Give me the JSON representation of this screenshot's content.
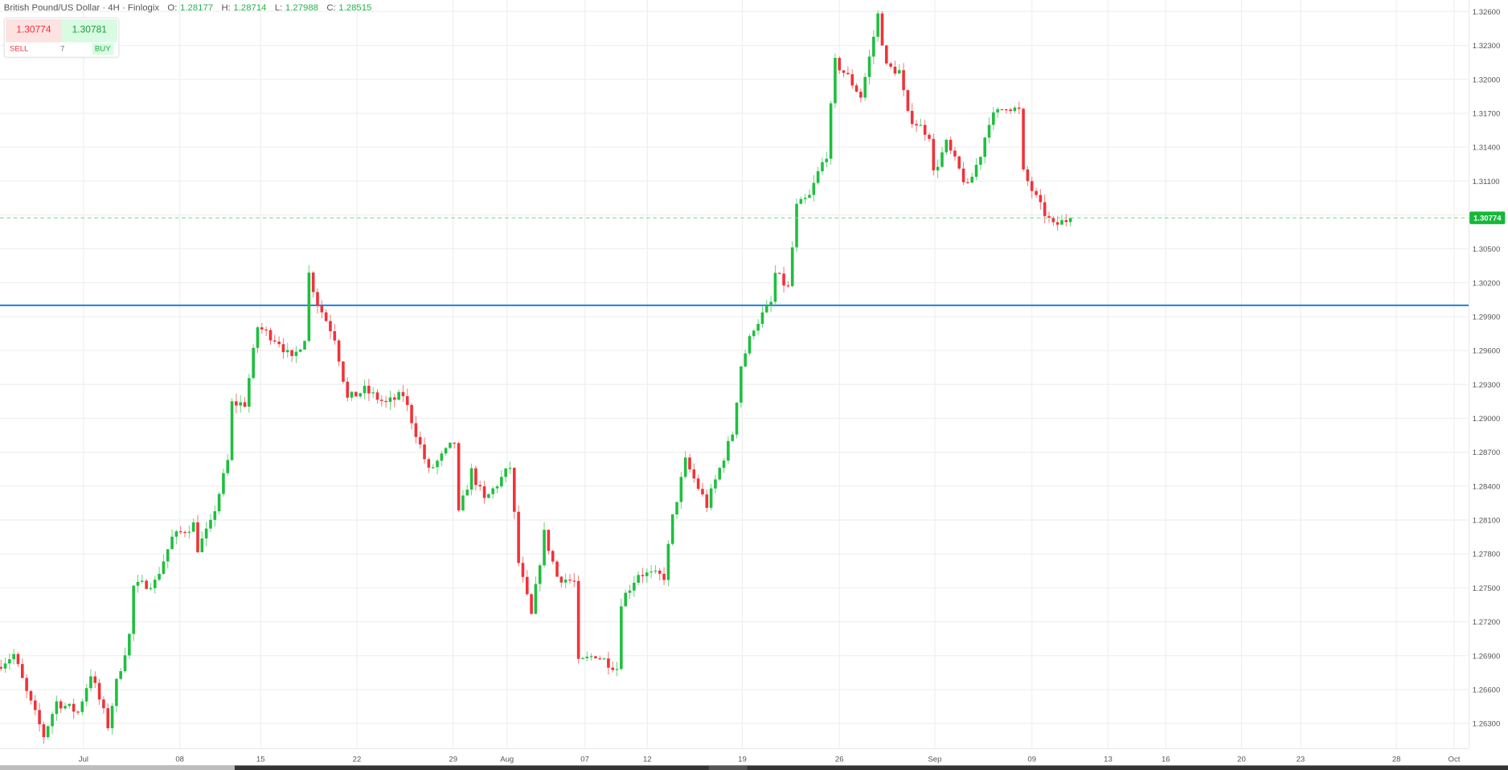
{
  "header": {
    "title": "British Pound/US Dollar · 4H · Finlogix",
    "ohlc": [
      {
        "label": "O:",
        "value": "1.28177"
      },
      {
        "label": "H:",
        "value": "1.28714"
      },
      {
        "label": "L:",
        "value": "1.27988"
      },
      {
        "label": "C:",
        "value": "1.28515"
      }
    ]
  },
  "trade": {
    "sell_price": "1.30774",
    "buy_price": "1.30781",
    "sell_label": "SELL",
    "buy_label": "BUY",
    "quantity": "7"
  },
  "colors": {
    "up": "#1fbf3f",
    "down": "#ef3339",
    "hline": "#1e7fe0",
    "last": "#15b83a"
  },
  "chart_data": {
    "type": "candlestick",
    "symbol": "GBP/USD",
    "timeframe": "4H",
    "ylim": [
      1.2615,
      1.3268
    ],
    "yticks": [
      "1.32600",
      "1.32300",
      "1.32000",
      "1.31700",
      "1.31400",
      "1.31100",
      "1.30800",
      "1.30500",
      "1.30200",
      "1.29900",
      "1.29600",
      "1.29300",
      "1.29000",
      "1.28700",
      "1.28400",
      "1.28100",
      "1.27800",
      "1.27500",
      "1.27200",
      "1.26900",
      "1.26600",
      "1.26300"
    ],
    "yticks_visible": [
      "1.32600",
      "1.32300",
      "1.32000",
      "1.31700",
      "1.31400",
      "1.31100",
      "1.30500",
      "1.30200",
      "1.29900",
      "1.29600",
      "1.29300",
      "1.29000",
      "1.28700",
      "1.28400",
      "1.28100",
      "1.27800",
      "1.27500",
      "1.27200",
      "1.26900",
      "1.26600",
      "1.26300"
    ],
    "xticks": [
      {
        "label": "Jul",
        "bar": 19.3
      },
      {
        "label": "08",
        "bar": 41.8
      },
      {
        "label": "15",
        "bar": 60.7
      },
      {
        "label": "22",
        "bar": 83.2
      },
      {
        "label": "29",
        "bar": 105.7
      },
      {
        "label": "Aug",
        "bar": 118.3
      },
      {
        "label": "07",
        "bar": 136.5
      },
      {
        "label": "12",
        "bar": 151.1
      },
      {
        "label": "19",
        "bar": 173.3
      },
      {
        "label": "26",
        "bar": 196.0
      },
      {
        "label": "Sep",
        "bar": 218.3
      },
      {
        "label": "09",
        "bar": 241.0
      },
      {
        "label": "13",
        "bar": 258.8
      },
      {
        "label": "16",
        "bar": 272.3
      },
      {
        "label": "20",
        "bar": 290.0
      },
      {
        "label": "23",
        "bar": 303.8
      },
      {
        "label": "28",
        "bar": 326.2
      },
      {
        "label": "Oct",
        "bar": 339.7
      }
    ],
    "bars_visible": 343,
    "close_waypoints": [
      [
        0,
        1.2683
      ],
      [
        3,
        1.2691
      ],
      [
        6,
        1.2657
      ],
      [
        10,
        1.2619
      ],
      [
        13,
        1.2649
      ],
      [
        18,
        1.264
      ],
      [
        21,
        1.2674
      ],
      [
        25,
        1.2628
      ],
      [
        27,
        1.2666
      ],
      [
        30,
        1.2708
      ],
      [
        31,
        1.2751
      ],
      [
        36,
        1.2755
      ],
      [
        40,
        1.2794
      ],
      [
        45,
        1.2806
      ],
      [
        46,
        1.2785
      ],
      [
        49,
        1.2806
      ],
      [
        53,
        1.2862
      ],
      [
        54,
        1.2913
      ],
      [
        57,
        1.2913
      ],
      [
        60,
        1.2981
      ],
      [
        65,
        1.2968
      ],
      [
        68,
        1.2951
      ],
      [
        71,
        1.2972
      ],
      [
        72,
        1.3028
      ],
      [
        74,
        1.3002
      ],
      [
        78,
        1.2972
      ],
      [
        81,
        1.2917
      ],
      [
        85,
        1.2925
      ],
      [
        90,
        1.2913
      ],
      [
        94,
        1.2921
      ],
      [
        100,
        1.2853
      ],
      [
        106,
        1.2879
      ],
      [
        107,
        1.2815
      ],
      [
        110,
        1.2853
      ],
      [
        113,
        1.2827
      ],
      [
        119,
        1.2857
      ],
      [
        121,
        1.2772
      ],
      [
        124,
        1.2725
      ],
      [
        127,
        1.2798
      ],
      [
        130,
        1.276
      ],
      [
        134,
        1.2755
      ],
      [
        135,
        1.2683
      ],
      [
        139,
        1.2691
      ],
      [
        144,
        1.2679
      ],
      [
        145,
        1.2738
      ],
      [
        149,
        1.2763
      ],
      [
        155,
        1.276
      ],
      [
        157,
        1.2812
      ],
      [
        160,
        1.2862
      ],
      [
        165,
        1.2823
      ],
      [
        167,
        1.2845
      ],
      [
        171,
        1.2887
      ],
      [
        173,
        1.2947
      ],
      [
        176,
        1.2981
      ],
      [
        180,
        1.3002
      ],
      [
        181,
        1.3028
      ],
      [
        184,
        1.3015
      ],
      [
        186,
        1.3087
      ],
      [
        189,
        1.3096
      ],
      [
        191,
        1.3117
      ],
      [
        193,
        1.3134
      ],
      [
        195,
        1.3215
      ],
      [
        198,
        1.3202
      ],
      [
        201,
        1.3185
      ],
      [
        203,
        1.3219
      ],
      [
        205,
        1.3257
      ],
      [
        207,
        1.3211
      ],
      [
        210,
        1.3207
      ],
      [
        212,
        1.3168
      ],
      [
        217,
        1.3151
      ],
      [
        218,
        1.3117
      ],
      [
        221,
        1.3143
      ],
      [
        226,
        1.3104
      ],
      [
        229,
        1.3134
      ],
      [
        231,
        1.3164
      ],
      [
        235,
        1.3177
      ],
      [
        238,
        1.3172
      ],
      [
        239,
        1.3117
      ],
      [
        243,
        1.3087
      ],
      [
        246,
        1.307
      ],
      [
        250,
        1.30774
      ]
    ],
    "horizontal_line": 1.3,
    "last_price": "1.30774",
    "grid": true
  }
}
